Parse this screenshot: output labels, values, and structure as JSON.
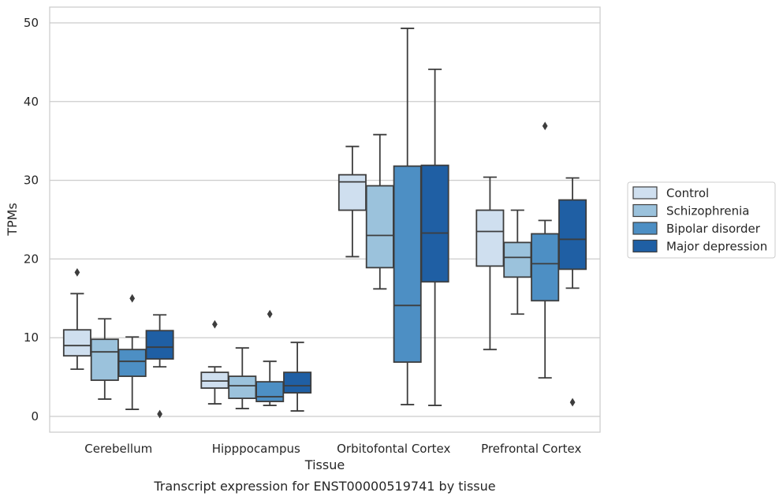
{
  "chart_data": {
    "type": "box",
    "title": "",
    "caption": "Transcript expression for ENST00000519741 by tissue",
    "xlabel": "Tissue",
    "ylabel": "TPMs",
    "ylim": [
      -2,
      52
    ],
    "yticks": [
      0,
      10,
      20,
      30,
      40,
      50
    ],
    "grid": "horizontal",
    "legend_position": "right",
    "categories": [
      "Cerebellum",
      "Hipppocampus",
      "Orbitofontal Cortex",
      "Prefrontal Cortex"
    ],
    "series": [
      {
        "name": "Control",
        "color": "#cfdfef",
        "boxes": [
          {
            "whisker_low": 6.0,
            "q1": 7.7,
            "median": 9.0,
            "q3": 11.0,
            "whisker_high": 15.6,
            "outliers": [
              18.3
            ]
          },
          {
            "whisker_low": 1.6,
            "q1": 3.6,
            "median": 4.5,
            "q3": 5.6,
            "whisker_high": 6.3,
            "outliers": [
              11.7
            ]
          },
          {
            "whisker_low": 20.3,
            "q1": 26.2,
            "median": 29.8,
            "q3": 30.7,
            "whisker_high": 34.3,
            "outliers": []
          },
          {
            "whisker_low": 8.5,
            "q1": 19.1,
            "median": 23.5,
            "q3": 26.2,
            "whisker_high": 30.4,
            "outliers": []
          }
        ]
      },
      {
        "name": "Schizophrenia",
        "color": "#9bc2dc",
        "boxes": [
          {
            "whisker_low": 2.2,
            "q1": 4.6,
            "median": 8.2,
            "q3": 9.8,
            "whisker_high": 12.4,
            "outliers": []
          },
          {
            "whisker_low": 1.0,
            "q1": 2.3,
            "median": 3.9,
            "q3": 5.1,
            "whisker_high": 8.7,
            "outliers": []
          },
          {
            "whisker_low": 16.2,
            "q1": 18.9,
            "median": 23.0,
            "q3": 29.3,
            "whisker_high": 35.8,
            "outliers": []
          },
          {
            "whisker_low": 13.0,
            "q1": 17.7,
            "median": 20.2,
            "q3": 22.1,
            "whisker_high": 26.2,
            "outliers": []
          }
        ]
      },
      {
        "name": "Bipolar disorder",
        "color": "#4d8fc4",
        "boxes": [
          {
            "whisker_low": 0.9,
            "q1": 5.1,
            "median": 7.0,
            "q3": 8.5,
            "whisker_high": 10.1,
            "outliers": [
              15.0
            ]
          },
          {
            "whisker_low": 1.4,
            "q1": 1.9,
            "median": 2.5,
            "q3": 4.4,
            "whisker_high": 7.0,
            "outliers": [
              13.0
            ]
          },
          {
            "whisker_low": 1.5,
            "q1": 6.9,
            "median": 14.1,
            "q3": 31.8,
            "whisker_high": 49.3,
            "outliers": []
          },
          {
            "whisker_low": 4.9,
            "q1": 14.7,
            "median": 19.4,
            "q3": 23.2,
            "whisker_high": 24.9,
            "outliers": [
              36.9
            ]
          }
        ]
      },
      {
        "name": "Major depression",
        "color": "#1f5fa4",
        "boxes": [
          {
            "whisker_low": 6.3,
            "q1": 7.3,
            "median": 8.8,
            "q3": 10.9,
            "whisker_high": 12.9,
            "outliers": [
              0.3
            ]
          },
          {
            "whisker_low": 0.7,
            "q1": 3.0,
            "median": 3.9,
            "q3": 5.6,
            "whisker_high": 9.4,
            "outliers": []
          },
          {
            "whisker_low": 1.4,
            "q1": 17.1,
            "median": 23.3,
            "q3": 31.9,
            "whisker_high": 44.1,
            "outliers": []
          },
          {
            "whisker_low": 16.3,
            "q1": 18.7,
            "median": 22.5,
            "q3": 27.5,
            "whisker_high": 30.3,
            "outliers": [
              1.8
            ]
          }
        ]
      }
    ]
  }
}
